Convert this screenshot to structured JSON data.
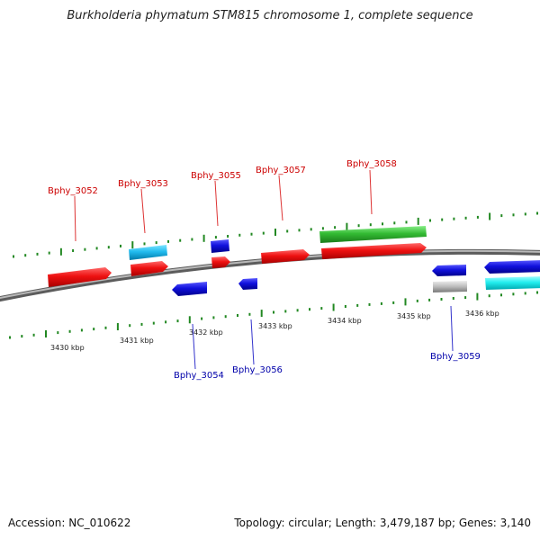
{
  "title": "Burkholderia phymatum STM815 chromosome 1, complete sequence",
  "footer": {
    "accession": "Accession: NC_010622",
    "stats": "Topology: circular; Length: 3,479,187 bp; Genes: 3,140"
  },
  "ticks": [
    "3430 kbp",
    "3431 kbp",
    "3432 kbp",
    "3433 kbp",
    "3434 kbp",
    "3435 kbp",
    "3436 kbp"
  ],
  "genes": [
    {
      "id": "Bphy_3052",
      "strand": "forward"
    },
    {
      "id": "Bphy_3053",
      "strand": "forward"
    },
    {
      "id": "Bphy_3054",
      "strand": "reverse"
    },
    {
      "id": "Bphy_3055",
      "strand": "forward"
    },
    {
      "id": "Bphy_3056",
      "strand": "reverse"
    },
    {
      "id": "Bphy_3057",
      "strand": "forward"
    },
    {
      "id": "Bphy_3058",
      "strand": "forward"
    },
    {
      "id": "Bphy_3059",
      "strand": "reverse"
    }
  ],
  "colors": {
    "forward_label": "#cc0000",
    "reverse_label": "#0000aa",
    "gene_red": "#ee1111",
    "gene_blue": "#1111dd",
    "gene_cyan": "#22bbee",
    "gene_green": "#33bb33",
    "gene_gray": "#bbbbbb",
    "tick_green": "#228822",
    "backbone": "#808080"
  }
}
